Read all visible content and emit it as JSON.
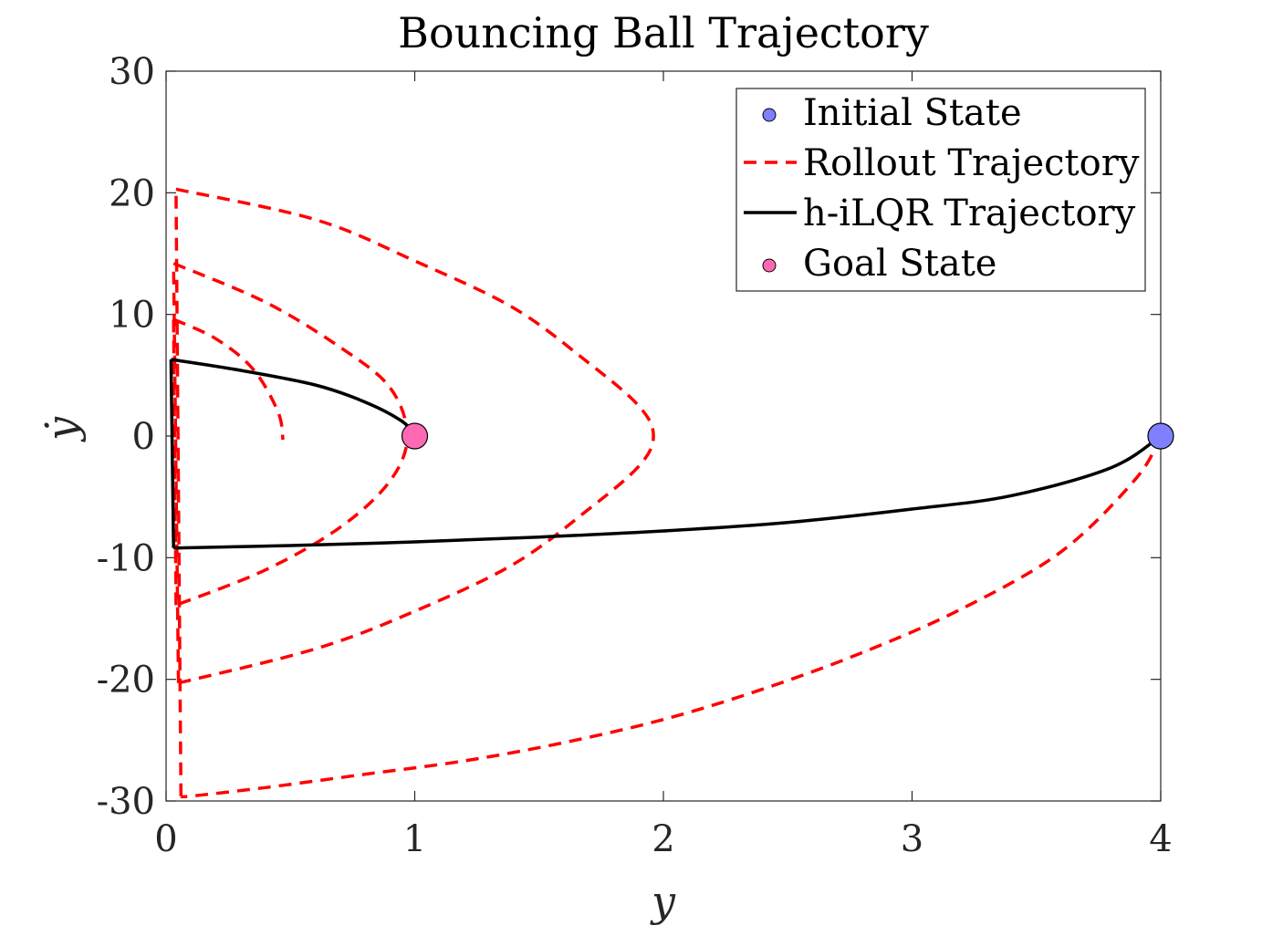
{
  "chart_data": {
    "type": "line",
    "title": "Bouncing Ball Trajectory",
    "xlabel": "y",
    "ylabel": "ẏ",
    "xlim": [
      0,
      4
    ],
    "ylim": [
      -30,
      30
    ],
    "xticks": [
      "0",
      "1",
      "2",
      "3",
      "4"
    ],
    "yticks": [
      "-30",
      "-20",
      "-10",
      "0",
      "10",
      "20",
      "30"
    ],
    "grid": false,
    "legend_position": "top-right",
    "legend": [
      {
        "label": "Initial State",
        "kind": "marker",
        "color": "#7f7fff"
      },
      {
        "label": "Rollout Trajectory",
        "kind": "dashed-line",
        "color": "#ff0000"
      },
      {
        "label": "h-iLQR Trajectory",
        "kind": "solid-line",
        "color": "#000000"
      },
      {
        "label": "Goal State",
        "kind": "marker",
        "color": "#ff69b4"
      }
    ],
    "initial_state": {
      "x": 4.0,
      "y": 0.0,
      "color": "#7f7fff"
    },
    "goal_state": {
      "x": 1.0,
      "y": 0.0,
      "color": "#ff69b4"
    },
    "series": [
      {
        "name": "Rollout Trajectory",
        "style": "dashed",
        "color": "#ff0000",
        "segments": [
          [
            [
              4.0,
              0.0
            ],
            [
              3.9,
              -3.5
            ],
            [
              3.6,
              -9.5
            ],
            [
              3.2,
              -14.2
            ],
            [
              2.8,
              -17.8
            ],
            [
              2.4,
              -20.8
            ],
            [
              2.0,
              -23.3
            ],
            [
              1.6,
              -25.2
            ],
            [
              1.2,
              -26.7
            ],
            [
              0.8,
              -27.8
            ],
            [
              0.4,
              -28.9
            ],
            [
              0.1,
              -29.6
            ],
            [
              0.06,
              -29.6
            ]
          ],
          [
            [
              0.06,
              -29.6
            ],
            [
              0.04,
              20.3
            ]
          ],
          [
            [
              0.04,
              20.3
            ],
            [
              0.6,
              17.8
            ],
            [
              1.0,
              14.4
            ],
            [
              1.4,
              10.5
            ],
            [
              1.7,
              6.0
            ],
            [
              1.9,
              2.5
            ],
            [
              1.96,
              0.0
            ],
            [
              1.9,
              -2.5
            ],
            [
              1.7,
              -6.0
            ],
            [
              1.4,
              -10.5
            ],
            [
              1.0,
              -14.4
            ],
            [
              0.6,
              -17.5
            ],
            [
              0.05,
              -20.3
            ]
          ],
          [
            [
              0.05,
              -20.3
            ],
            [
              0.03,
              14.2
            ]
          ],
          [
            [
              0.03,
              14.2
            ],
            [
              0.4,
              11.0
            ],
            [
              0.7,
              7.3
            ],
            [
              0.9,
              4.0
            ],
            [
              0.97,
              0.0
            ],
            [
              0.9,
              -3.7
            ],
            [
              0.7,
              -7.5
            ],
            [
              0.4,
              -11.0
            ],
            [
              0.04,
              -13.9
            ]
          ],
          [
            [
              0.04,
              -13.9
            ],
            [
              0.03,
              9.6
            ]
          ],
          [
            [
              0.03,
              9.6
            ],
            [
              0.2,
              8.0
            ],
            [
              0.35,
              5.5
            ],
            [
              0.45,
              2.0
            ],
            [
              0.47,
              -0.3
            ]
          ]
        ]
      },
      {
        "name": "h-iLQR Trajectory",
        "style": "solid",
        "color": "#000000",
        "segments": [
          [
            [
              4.0,
              0.0
            ],
            [
              3.8,
              -2.6
            ],
            [
              3.4,
              -4.9
            ],
            [
              3.0,
              -6.0
            ],
            [
              2.5,
              -7.1
            ],
            [
              2.0,
              -7.8
            ],
            [
              1.5,
              -8.3
            ],
            [
              1.0,
              -8.7
            ],
            [
              0.5,
              -9.0
            ],
            [
              0.03,
              -9.2
            ]
          ],
          [
            [
              0.03,
              -9.2
            ],
            [
              0.02,
              6.3
            ]
          ],
          [
            [
              0.02,
              6.3
            ],
            [
              0.3,
              5.4
            ],
            [
              0.6,
              4.2
            ],
            [
              0.8,
              2.8
            ],
            [
              0.95,
              1.2
            ],
            [
              1.0,
              0.0
            ]
          ]
        ]
      }
    ]
  }
}
